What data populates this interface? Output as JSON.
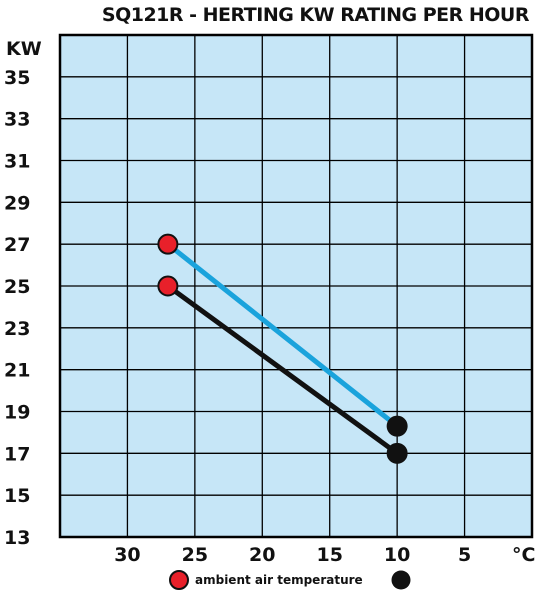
{
  "chart_data": {
    "type": "line",
    "title": "SQ121R - HERTING KW RATING PER HOUR",
    "ylabel": "KW",
    "xlabel": "°C",
    "x_ticks": [
      "30",
      "25",
      "20",
      "15",
      "10",
      "5"
    ],
    "y_ticks": [
      "35",
      "33",
      "31",
      "29",
      "27",
      "25",
      "23",
      "21",
      "19",
      "17",
      "15",
      "13"
    ],
    "xlim": [
      35,
      0
    ],
    "ylim": [
      13,
      37
    ],
    "grid": true,
    "legend_label": "ambient air temperature",
    "series": [
      {
        "color": "#1aa3dc",
        "x": [
          27,
          10
        ],
        "y": [
          27,
          18.3
        ]
      },
      {
        "color": "#111111",
        "x": [
          27,
          10
        ],
        "y": [
          25,
          17
        ]
      }
    ],
    "marker_start_color": "#e8202a",
    "marker_end_color": "#111111",
    "plot_background": "#c6e6f7"
  }
}
